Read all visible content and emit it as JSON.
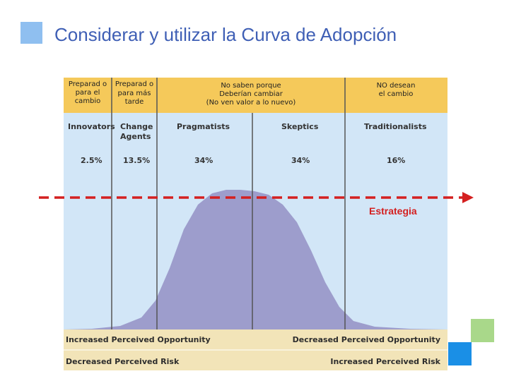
{
  "title": "Considerar y utilizar la Curva de Adopción",
  "headers": {
    "col1": "Preparad o para el cambio",
    "col2": "Preparad o para más tarde",
    "col3_line1": "No saben porque",
    "col3_line2": "Deberían cambiar",
    "col3_line3": "(No ven valor a lo nuevo)",
    "col4_line1": "NO desean",
    "col4_line2": "el cambio"
  },
  "categories": {
    "innovators": "Innovators",
    "change_agents_1": "Change",
    "change_agents_2": "Agents",
    "pragmatists": "Pragmatists",
    "skeptics": "Skeptics",
    "traditionalists": "Traditionalists"
  },
  "percentages": {
    "innovators": "2.5%",
    "change_agents": "13.5%",
    "pragmatists": "34%",
    "skeptics": "34%",
    "traditionalists": "16%"
  },
  "strategy_label": "Estrategia",
  "bottom": {
    "left_top": "Increased Perceived Opportunity",
    "right_top": "Decreased Perceived Opportunity",
    "left_bottom": "Decreased Perceived Risk",
    "right_bottom": "Increased Perceived Risk"
  },
  "colors": {
    "title": "#3f5fb5",
    "header_bg": "#f5c95a",
    "diagram_bg": "#d2e6f7",
    "curve": "#9d9dcc",
    "bottom_bg": "#f2e4b8",
    "arrow": "#d42020",
    "deco_green": "#a9d88a",
    "deco_blue": "#1a8fe6"
  }
}
